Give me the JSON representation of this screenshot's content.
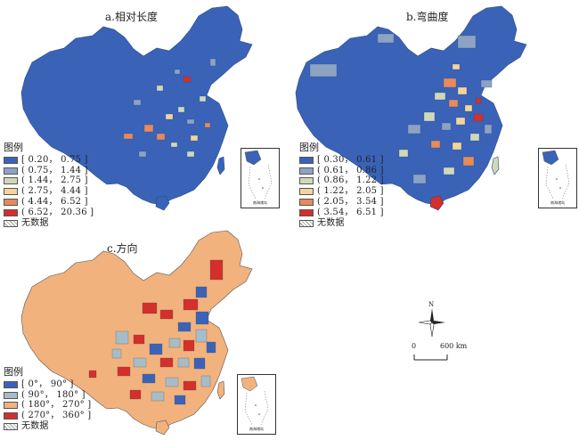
{
  "panels": [
    {
      "title": "a.相对长度",
      "legend_title": "图例",
      "legend": [
        {
          "label": "[ 0.20， 0.75 ]",
          "color": "#3a63b8"
        },
        {
          "label": "( 0.75， 1.44 ]",
          "color": "#8ea3c3"
        },
        {
          "label": "( 1.44， 2.75 ]",
          "color": "#cfd9b8"
        },
        {
          "label": "( 2.75， 4.44 ]",
          "color": "#f4d49b"
        },
        {
          "label": "( 4.44， 6.52 ]",
          "color": "#e88a5a"
        },
        {
          "label": "( 6.52， 20.36 ]",
          "color": "#d42f2a"
        },
        {
          "label": "无数据",
          "color": "hatch"
        }
      ],
      "inset_label": "南海诸岛"
    },
    {
      "title": "b.弯曲度",
      "legend_title": "图例",
      "legend": [
        {
          "label": "[ 0.30， 0.61 ]",
          "color": "#3a63b8"
        },
        {
          "label": "( 0.61， 0.86 ]",
          "color": "#8ea3c3"
        },
        {
          "label": "( 0.86， 1.22 ]",
          "color": "#cfd9b8"
        },
        {
          "label": "( 1.22， 2.05 ]",
          "color": "#f4d49b"
        },
        {
          "label": "( 2.05， 3.54 ]",
          "color": "#e88a5a"
        },
        {
          "label": "( 3.54， 6.51 ]",
          "color": "#d42f2a"
        },
        {
          "label": "无数据",
          "color": "hatch"
        }
      ],
      "inset_label": "南海诸岛"
    },
    {
      "title": "c.方向",
      "legend_title": "图例",
      "legend": [
        {
          "label": "[ 0°， 90° ]",
          "color": "#3a63b8"
        },
        {
          "label": "( 90°， 180° ]",
          "color": "#a8bcc7"
        },
        {
          "label": "( 180°， 270° ]",
          "color": "#f2b27e"
        },
        {
          "label": "( 270°， 360° ]",
          "color": "#d42f2a"
        },
        {
          "label": "无数据",
          "color": "hatch"
        }
      ],
      "inset_label": "南海诸岛"
    }
  ],
  "compass": {
    "north": "N"
  },
  "scale": {
    "zero": "0",
    "distance": "600 km"
  }
}
